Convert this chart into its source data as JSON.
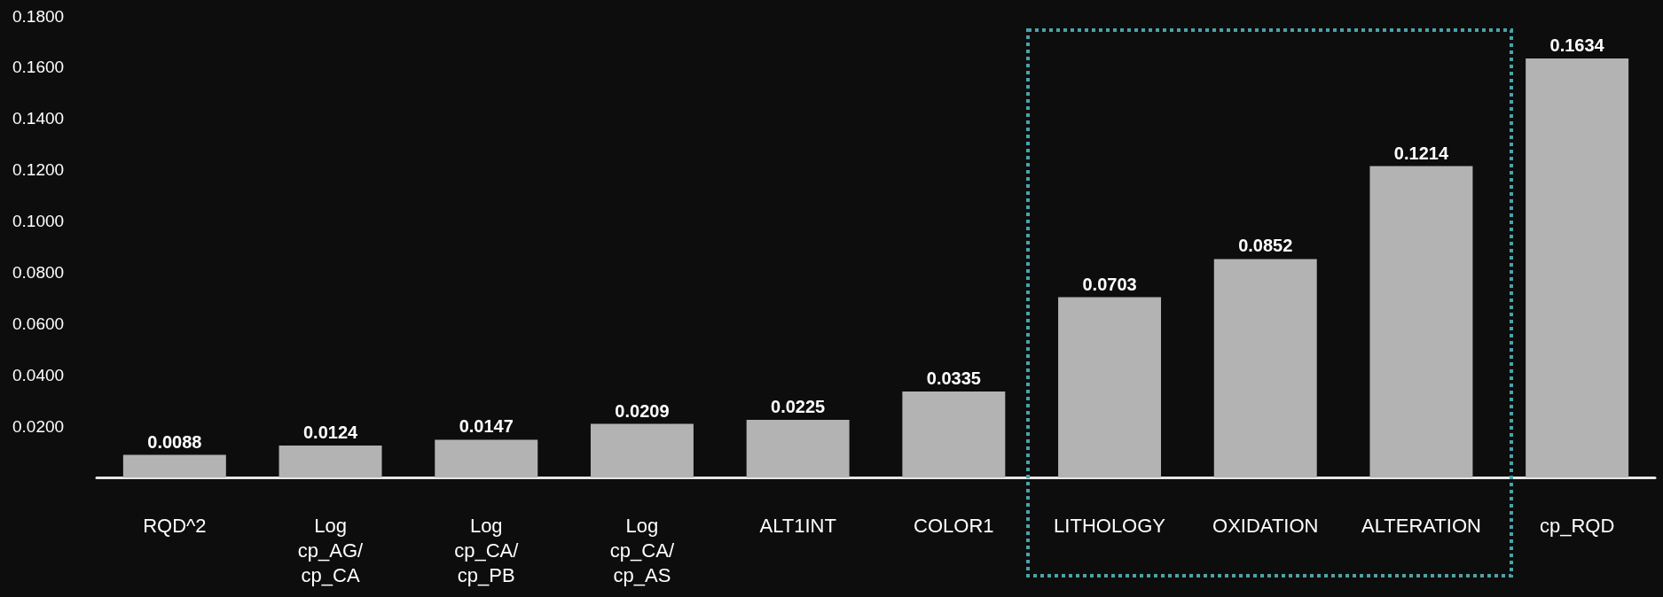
{
  "chart_data": {
    "type": "bar",
    "categories": [
      "RQD^2",
      "Log\ncp_AG/\ncp_CA",
      "Log\ncp_CA/\ncp_PB",
      "Log\ncp_CA/\ncp_AS",
      "ALT1INT",
      "COLOR1",
      "LITHOLOGY",
      "OXIDATION",
      "ALTERATION",
      "cp_RQD"
    ],
    "values": [
      0.0088,
      0.0124,
      0.0147,
      0.0209,
      0.0225,
      0.0335,
      0.0703,
      0.0852,
      0.1214,
      0.1634
    ],
    "color": "#b3b3b3",
    "ylim": [
      0,
      0.18
    ],
    "yticks": [
      {
        "value": 0.02,
        "label": "0.0200"
      },
      {
        "value": 0.04,
        "label": "0.0400"
      },
      {
        "value": 0.06,
        "label": "0.0600"
      },
      {
        "value": 0.08,
        "label": "0.0800"
      },
      {
        "value": 0.1,
        "label": "0.1000"
      },
      {
        "value": 0.12,
        "label": "0.1200"
      },
      {
        "value": 0.14,
        "label": "0.1400"
      },
      {
        "value": 0.16,
        "label": "0.1600"
      },
      {
        "value": 0.18,
        "label": "0.1800"
      }
    ],
    "data_labels": true,
    "grid": false
  }
}
